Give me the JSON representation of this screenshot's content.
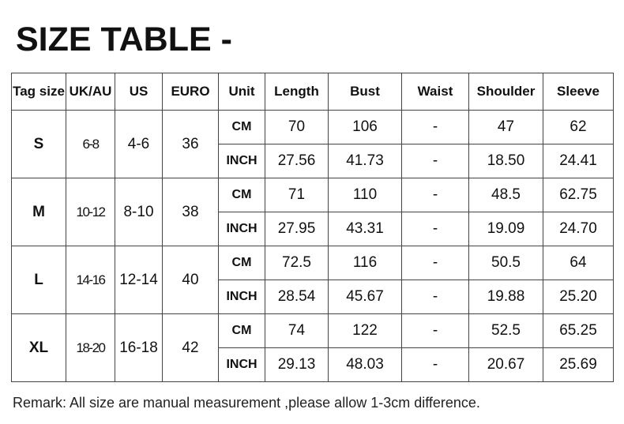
{
  "title": "SIZE TABLE -",
  "headers": [
    "Tag size",
    "UK/AU",
    "US",
    "EURO",
    "Unit",
    "Length",
    "Bust",
    "Waist",
    "Shoulder",
    "Sleeve"
  ],
  "rows": [
    {
      "tag": "S",
      "uk": "6-8",
      "us": "4-6",
      "euro": "36",
      "cm": {
        "unit": "CM",
        "length": "70",
        "bust": "106",
        "waist": "-",
        "shoulder": "47",
        "sleeve": "62"
      },
      "inch": {
        "unit": "INCH",
        "length": "27.56",
        "bust": "41.73",
        "waist": "-",
        "shoulder": "18.50",
        "sleeve": "24.41"
      }
    },
    {
      "tag": "M",
      "uk": "10-12",
      "us": "8-10",
      "euro": "38",
      "cm": {
        "unit": "CM",
        "length": "71",
        "bust": "110",
        "waist": "-",
        "shoulder": "48.5",
        "sleeve": "62.75"
      },
      "inch": {
        "unit": "INCH",
        "length": "27.95",
        "bust": "43.31",
        "waist": "-",
        "shoulder": "19.09",
        "sleeve": "24.70"
      }
    },
    {
      "tag": "L",
      "uk": "14-16",
      "us": "12-14",
      "euro": "40",
      "cm": {
        "unit": "CM",
        "length": "72.5",
        "bust": "116",
        "waist": "-",
        "shoulder": "50.5",
        "sleeve": "64"
      },
      "inch": {
        "unit": "INCH",
        "length": "28.54",
        "bust": "45.67",
        "waist": "-",
        "shoulder": "19.88",
        "sleeve": "25.20"
      }
    },
    {
      "tag": "XL",
      "uk": "18-20",
      "us": "16-18",
      "euro": "42",
      "cm": {
        "unit": "CM",
        "length": "74",
        "bust": "122",
        "waist": "-",
        "shoulder": "52.5",
        "sleeve": "65.25"
      },
      "inch": {
        "unit": "INCH",
        "length": "29.13",
        "bust": "48.03",
        "waist": "-",
        "shoulder": "20.67",
        "sleeve": "25.69"
      }
    }
  ],
  "remark": "Remark: All size are manual measurement ,please allow 1-3cm difference."
}
